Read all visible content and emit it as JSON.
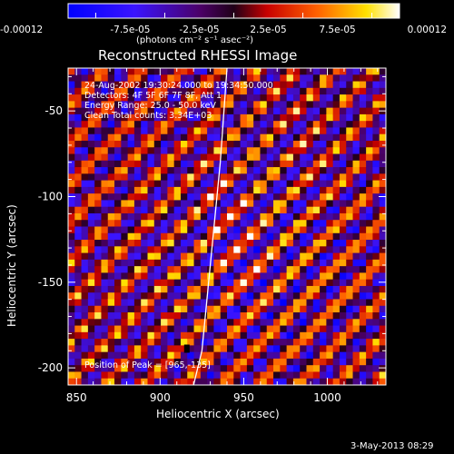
{
  "chart_data": {
    "type": "heatmap",
    "title": "Reconstructed RHESSI Image",
    "xlabel": "Heliocentric X (arcsec)",
    "ylabel": "Heliocentric Y (arcsec)",
    "xlim": [
      845,
      1035
    ],
    "ylim": [
      -210,
      -25
    ],
    "xticks": [
      850,
      900,
      950,
      1000
    ],
    "xtick_labels": [
      "850",
      "900",
      "950",
      "1000"
    ],
    "yticks": [
      -50,
      -100,
      -150,
      -200
    ],
    "ytick_labels": [
      "-50",
      "-100",
      "-150",
      "-200"
    ],
    "colorbar": {
      "range": [
        -0.00012,
        0.00012
      ],
      "tick_labels": [
        "-0.00012",
        "-7.5e-05",
        "-2.5e-05",
        "2.5e-05",
        "7.5e-05",
        "0.00012"
      ],
      "unit_label": "(photons cm⁻² s⁻¹ asec⁻²)",
      "colormap": "blue-purple-red-orange-yellow-white"
    },
    "annotations": [
      "24-Aug-2002 19:30:24.000 to 19:34:50.000",
      "Detectors: 4F 5F 6F 7F 8F, Att 1",
      "Energy Range: 25.0 - 50.0 keV",
      "Clean      Total counts: 3.34E+03"
    ],
    "peak_label": "Position of Peak = [965,-135]",
    "peak": [
      965,
      -135
    ],
    "limb_curve": {
      "x": [
        940,
        936,
        930,
        925,
        920
      ],
      "y": [
        -25,
        -80,
        -140,
        -190,
        -210
      ]
    },
    "pattern": "diagonal alternating stripes, bright ridges along y = x - 1100 (slope ~1)",
    "grid": false
  },
  "footer": {
    "date": "3-May-2013 08:29"
  }
}
